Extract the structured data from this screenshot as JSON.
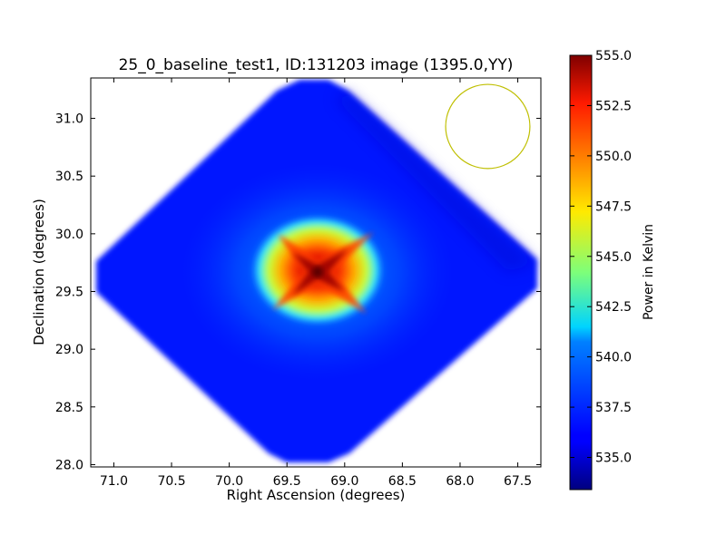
{
  "chart_data": {
    "type": "heatmap",
    "title": "25_0_baseline_test1, ID:131203 image (1395.0,YY)",
    "xlabel": "Right Ascension (degrees)",
    "ylabel": "Declination (degrees)",
    "xlim": [
      71.2,
      67.3
    ],
    "ylim": [
      27.98,
      31.35
    ],
    "x_reversed": true,
    "x_ticks": [
      71.0,
      70.5,
      70.0,
      69.5,
      69.0,
      68.5,
      68.0,
      67.5
    ],
    "x_tick_labels": [
      "71.0",
      "70.5",
      "70.0",
      "69.5",
      "69.0",
      "68.5",
      "68.0",
      "67.5"
    ],
    "y_ticks": [
      28.0,
      28.5,
      29.0,
      29.5,
      30.0,
      30.5,
      31.0
    ],
    "y_tick_labels": [
      "28.0",
      "28.5",
      "29.0",
      "29.5",
      "30.0",
      "30.5",
      "31.0"
    ],
    "colormap": "jet",
    "colorbar": {
      "label": "Power in Kelvin",
      "min": 533.4,
      "max": 555.0,
      "ticks": [
        535.0,
        537.5,
        540.0,
        542.5,
        545.0,
        547.5,
        550.0,
        552.5,
        555.0
      ],
      "tick_labels": [
        "535.0",
        "537.5",
        "540.0",
        "542.5",
        "545.0",
        "547.5",
        "550.0",
        "552.5",
        "555.0"
      ]
    },
    "field": {
      "shape": "diamond",
      "center": [
        69.35,
        29.67
      ],
      "corners": {
        "top": [
          69.2,
          31.33
        ],
        "right": [
          67.36,
          29.67
        ],
        "bottom": [
          69.3,
          28.01
        ],
        "left": [
          71.17,
          29.67
        ]
      },
      "background_value": 535.0,
      "peak": {
        "ra": 69.3,
        "dec": 29.67,
        "value": 554.5
      }
    },
    "beam_circle": {
      "ra": 67.76,
      "dec": 30.93,
      "radius_deg": 0.365,
      "color": "#bfbf00"
    },
    "grid": false,
    "legend": "none"
  }
}
